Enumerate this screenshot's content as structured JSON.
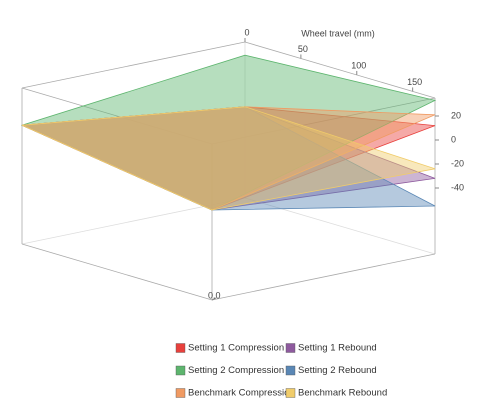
{
  "chart_data": {
    "type": "surface3d",
    "x_label": "Wheel travel (mm)",
    "xlim": [
      0,
      170
    ],
    "ylim": [
      0,
      1
    ],
    "zlim": [
      -95,
      35
    ],
    "xticks": [
      0,
      50,
      100,
      150
    ],
    "yticks": [
      {
        "value": 0,
        "label": "0.0"
      }
    ],
    "zticks": [
      20,
      0,
      -20,
      -40
    ],
    "series": [
      {
        "name": "Setting 1 Compression",
        "color": "#e8403c",
        "values": [
          [
            4,
            -20
          ],
          [
            -19,
            12
          ]
        ]
      },
      {
        "name": "Setting 1 Rebound",
        "color": "#8e5a9e",
        "values": [
          [
            4,
            -20
          ],
          [
            -19,
            -32
          ]
        ]
      },
      {
        "name": "Setting 2 Compression",
        "color": "#5db56e",
        "values": [
          [
            4,
            -20
          ],
          [
            24,
            33
          ]
        ]
      },
      {
        "name": "Setting 2 Rebound",
        "color": "#5a87b5",
        "values": [
          [
            4,
            -20
          ],
          [
            -19,
            -55
          ]
        ]
      },
      {
        "name": "Benchmark Compression",
        "color": "#f09a62",
        "values": [
          [
            4,
            -20
          ],
          [
            -19,
            21
          ]
        ]
      },
      {
        "name": "Benchmark Rebound",
        "color": "#f0cc6a",
        "values": [
          [
            4,
            -20
          ],
          [
            -19,
            -24
          ]
        ]
      }
    ]
  }
}
